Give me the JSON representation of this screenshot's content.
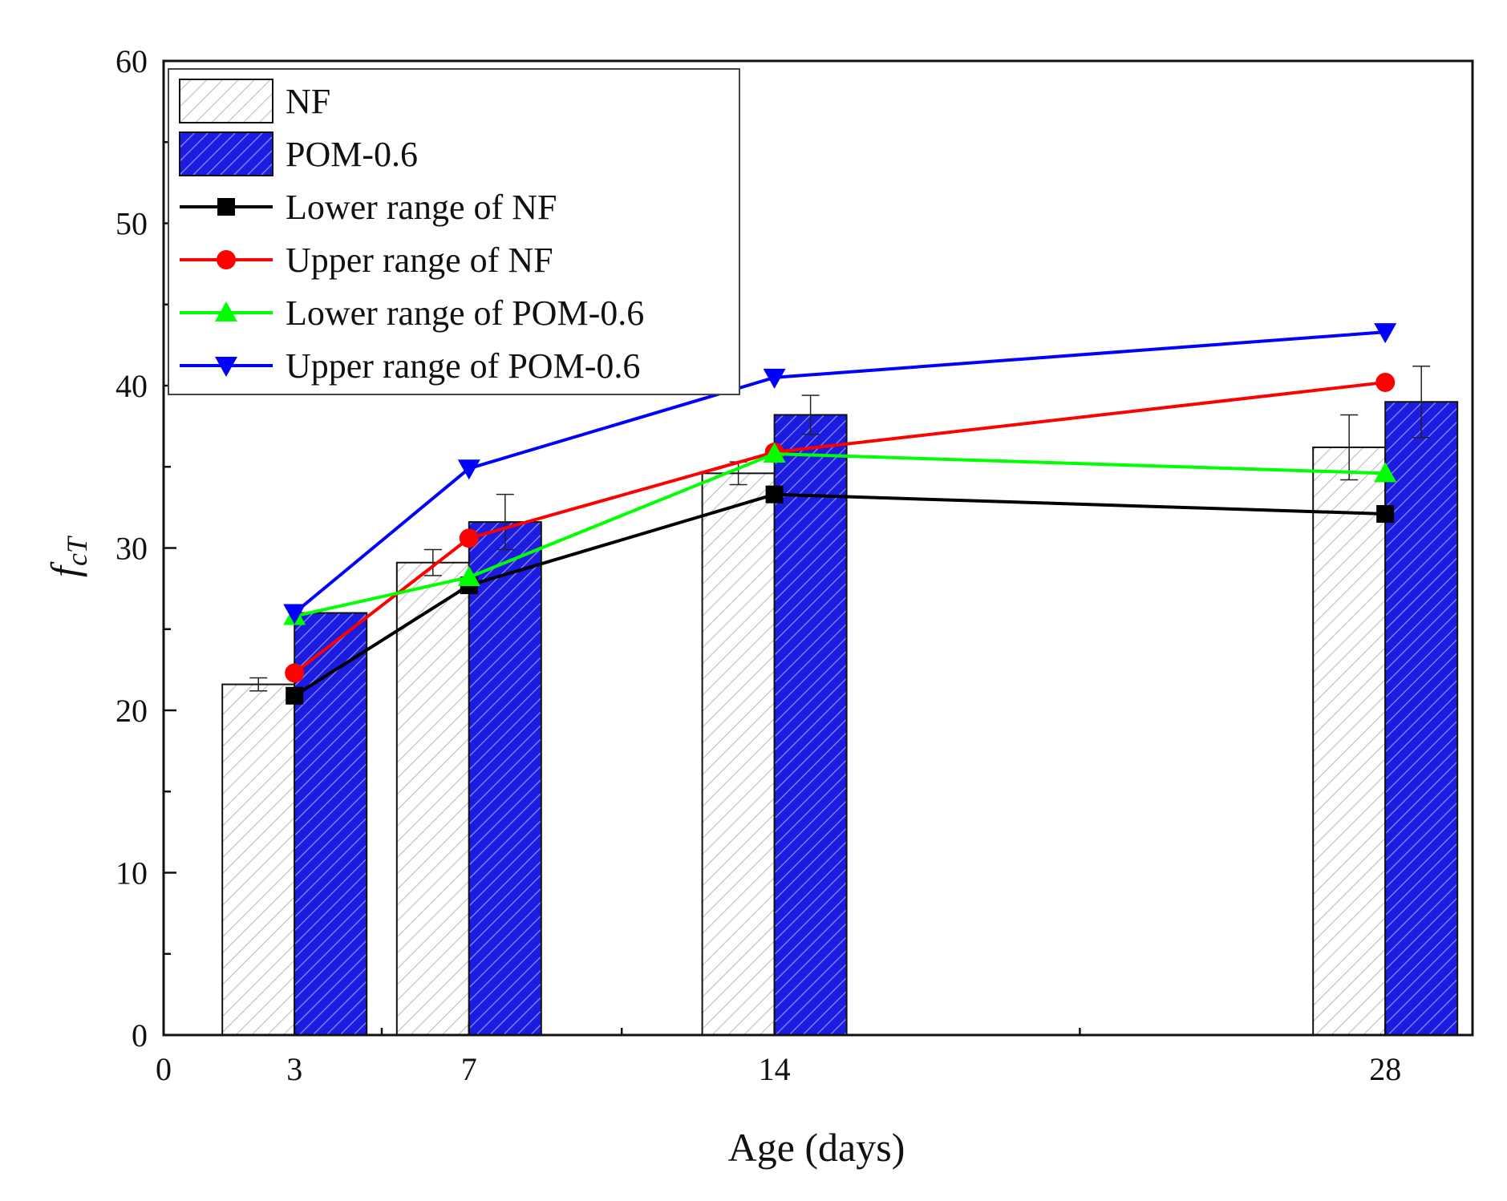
{
  "chart_data": {
    "type": "bar",
    "title": "",
    "xlabel": "Age (days)",
    "ylabel_main": "f",
    "ylabel_sub": "cT",
    "xlim": [
      0,
      30
    ],
    "ylim": [
      0,
      60
    ],
    "x_ticks": [
      0,
      3,
      7,
      14,
      28
    ],
    "x_minor_ticks": [
      5,
      10.5,
      21
    ],
    "y_ticks": [
      0,
      10,
      20,
      30,
      40,
      50,
      60
    ],
    "y_minor_step": 5,
    "categories": [
      3,
      7,
      14,
      28
    ],
    "bar_series": [
      {
        "name": "NF",
        "values": [
          21.6,
          29.1,
          34.6,
          36.2
        ],
        "errors": [
          0.4,
          0.8,
          0.7,
          2.0
        ],
        "color": "#ffffff",
        "hatch_color": "#c8c8c8"
      },
      {
        "name": "POM-0.6",
        "values": [
          26.0,
          31.6,
          38.2,
          39.0
        ],
        "errors": [
          0.0,
          1.7,
          1.2,
          2.2
        ],
        "color": "#1a1adc",
        "hatch_color": "#9a9aff"
      }
    ],
    "line_series": [
      {
        "name": "Lower range of NF",
        "x": [
          3,
          7,
          14,
          28
        ],
        "values": [
          20.9,
          27.7,
          33.3,
          32.1
        ],
        "color": "#000000",
        "marker": "square"
      },
      {
        "name": "Upper range of NF",
        "x": [
          3,
          7,
          14,
          28
        ],
        "values": [
          22.3,
          30.6,
          35.9,
          40.2
        ],
        "color": "#ff0000",
        "marker": "circle"
      },
      {
        "name": "Lower range of POM-0.6",
        "x": [
          3,
          7,
          14,
          28
        ],
        "values": [
          25.8,
          28.2,
          35.8,
          34.6
        ],
        "color": "#00ff00",
        "marker": "triangle-up"
      },
      {
        "name": "Upper range of POM-0.6",
        "x": [
          3,
          7,
          14,
          28
        ],
        "values": [
          26.0,
          34.9,
          40.5,
          43.3
        ],
        "color": "#0000ff",
        "marker": "triangle-down"
      }
    ],
    "legend": {
      "position": "top-left",
      "entries": [
        "NF",
        "POM-0.6",
        "Lower range of NF",
        "Upper range of NF",
        "Lower range of POM-0.6",
        "Upper range of POM-0.6"
      ]
    },
    "grid": false
  }
}
